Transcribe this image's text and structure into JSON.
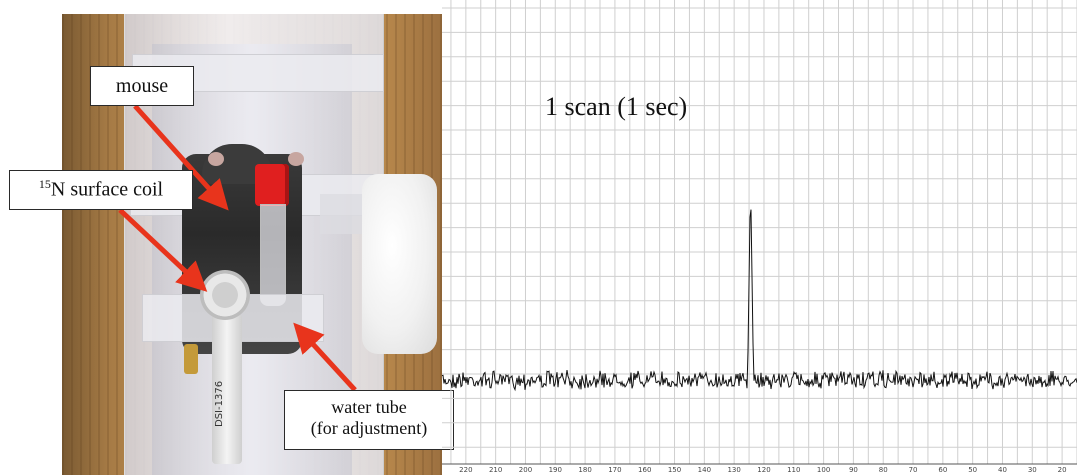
{
  "labels": {
    "mouse": "mouse",
    "coil_sup": "15",
    "coil_text": "N surface coil",
    "water_line1": "water tube",
    "water_line2": "(for adjustment)",
    "coil_id": "DSI-1376"
  },
  "spectrum": {
    "title": "1 scan (1 sec)",
    "axis": {
      "ticks": [
        220,
        210,
        200,
        190,
        180,
        170,
        160,
        150,
        140,
        130,
        120,
        110,
        100,
        90,
        80,
        70,
        60,
        50,
        40,
        30,
        20
      ],
      "xlim": [
        228,
        15
      ],
      "peak_at": 124.5
    }
  },
  "colors": {
    "arrow": "#e8341c",
    "grid": "#cfcfcf",
    "trace": "#111111"
  }
}
